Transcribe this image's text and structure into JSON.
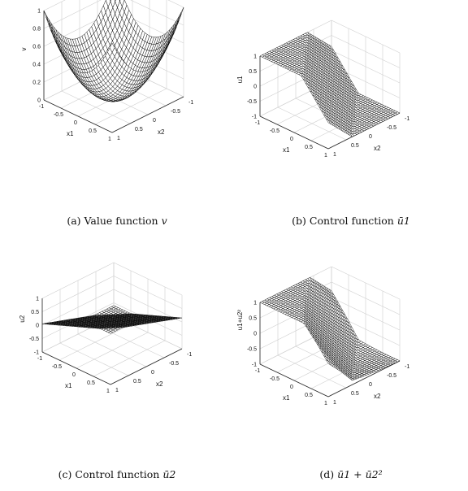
{
  "chart_data": [
    {
      "type": "surface",
      "function": "value",
      "caption_prefix": "(a) Value function ",
      "caption_math": "v",
      "xlabel": "x1",
      "ylabel": "x2",
      "zlabel": "v",
      "xlim": [
        -1,
        1
      ],
      "ylim": [
        -1,
        1
      ],
      "zlim": [
        0,
        1
      ],
      "xticks": [
        "-1",
        "-0.5",
        "0",
        "0.5",
        "1"
      ],
      "yticks": [
        "-1",
        "-0.5",
        "0",
        "0.5",
        "1"
      ],
      "zticks": [
        "0",
        "0.2",
        "0.4",
        "0.6",
        "0.8",
        "1"
      ],
      "grid": true,
      "mesh_color": "#000000",
      "face_color": "#ffffff"
    },
    {
      "type": "surface",
      "function": "u1",
      "caption_prefix": "(b) Control function ",
      "caption_math": "ū1",
      "xlabel": "x1",
      "ylabel": "x2",
      "zlabel": "u1",
      "xlim": [
        -1,
        1
      ],
      "ylim": [
        -1,
        1
      ],
      "zlim": [
        -1,
        1
      ],
      "xticks": [
        "-1",
        "-0.5",
        "0",
        "0.5",
        "1"
      ],
      "yticks": [
        "-1",
        "-0.5",
        "0",
        "0.5",
        "1"
      ],
      "zticks": [
        "-1",
        "-0.5",
        "0",
        "0.5",
        "1"
      ],
      "grid": true,
      "mesh_color": "#000000",
      "face_color": "#ffffff"
    },
    {
      "type": "surface",
      "function": "u2",
      "caption_prefix": "(c) Control function ",
      "caption_math": "ū2",
      "xlabel": "x1",
      "ylabel": "x2",
      "zlabel": "u2",
      "xlim": [
        -1,
        1
      ],
      "ylim": [
        -1,
        1
      ],
      "zlim": [
        -1,
        1
      ],
      "xticks": [
        "-1",
        "-0.5",
        "0",
        "0.5",
        "1"
      ],
      "yticks": [
        "-1",
        "-0.5",
        "0",
        "0.5",
        "1"
      ],
      "zticks": [
        "-1",
        "-0.5",
        "0",
        "0.5",
        "1"
      ],
      "grid": true,
      "mesh_color": "#000000",
      "face_color": "#ffffff"
    },
    {
      "type": "surface",
      "function": "u1+u2sq",
      "caption_prefix": "(d) ",
      "caption_math": "ū1 + ū2²",
      "xlabel": "x1",
      "ylabel": "x2",
      "zlabel": "u1+u2²",
      "xlim": [
        -1,
        1
      ],
      "ylim": [
        -1,
        1
      ],
      "zlim": [
        -1,
        1
      ],
      "xticks": [
        "-1",
        "-0.5",
        "0",
        "0.5",
        "1"
      ],
      "yticks": [
        "-1",
        "-0.5",
        "0",
        "0.5",
        "1"
      ],
      "zticks": [
        "-1",
        "-0.5",
        "0",
        "0.5",
        "1"
      ],
      "grid": true,
      "mesh_color": "#000000",
      "face_color": "#ffffff"
    }
  ]
}
